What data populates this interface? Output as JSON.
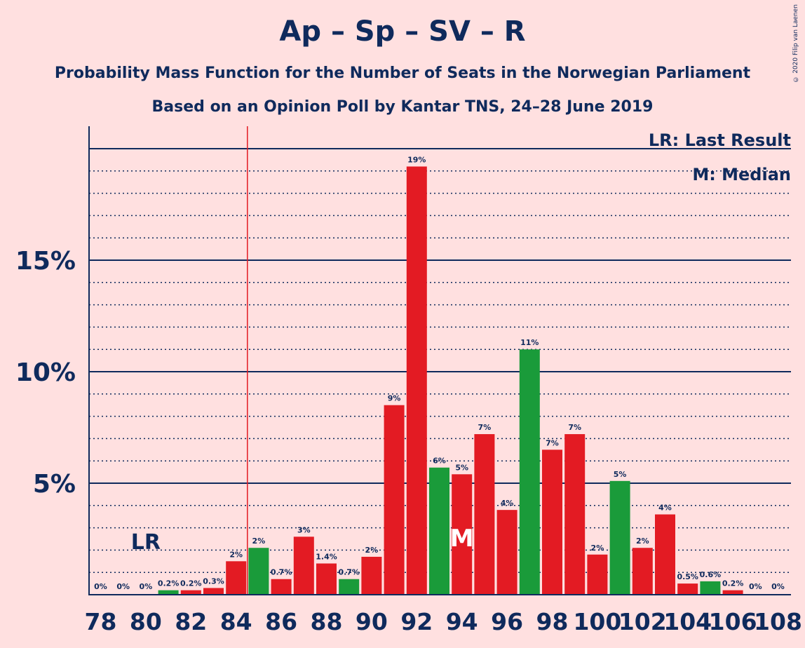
{
  "chart_data": {
    "type": "bar",
    "title": "Ap – Sp – SV – R",
    "subtitle_line1": "Probability Mass Function for the Number of Seats in the Norwegian Parliament",
    "subtitle_line2": "Based on an Opinion Poll by Kantar TNS, 24–28 June 2019",
    "copyright": "© 2020 Filip van Laenen",
    "legend": [
      "LR: Last Result",
      "M: Median"
    ],
    "last_result_seat": 84.5,
    "last_result_label": "LR",
    "last_result_label_seat": 80,
    "median_seat": 94,
    "median_label": "M",
    "x": [
      78,
      79,
      80,
      81,
      82,
      83,
      84,
      85,
      86,
      87,
      88,
      89,
      90,
      91,
      92,
      93,
      94,
      95,
      96,
      97,
      98,
      99,
      100,
      101,
      102,
      103,
      104,
      105,
      106,
      107,
      108
    ],
    "values": [
      0,
      0,
      0,
      0.2,
      0.2,
      0.3,
      1.5,
      2.1,
      0.7,
      2.6,
      1.4,
      0.7,
      1.7,
      8.5,
      19.2,
      5.7,
      5.4,
      7.2,
      3.8,
      11.0,
      6.5,
      7.2,
      1.8,
      5.1,
      2.1,
      3.6,
      0.5,
      0.6,
      0.2,
      0,
      0
    ],
    "value_labels": [
      "0%",
      "0%",
      "0%",
      "0.2%",
      "0.2%",
      "0.3%",
      "2%",
      "2%",
      "0.7%",
      "3%",
      "1.4%",
      "0.7%",
      "2%",
      "9%",
      "19%",
      "6%",
      "5%",
      "7%",
      "4%",
      "11%",
      "7%",
      "7%",
      "2%",
      "5%",
      "2%",
      "4%",
      "0.5%",
      "0.6%",
      "0.2%",
      "0%",
      "0%"
    ],
    "colors": [
      "red",
      "red",
      "red",
      "green",
      "red",
      "red",
      "red",
      "green",
      "red",
      "red",
      "red",
      "green",
      "red",
      "red",
      "red",
      "green",
      "red",
      "red",
      "red",
      "green",
      "red",
      "red",
      "red",
      "green",
      "red",
      "red",
      "red",
      "green",
      "red",
      "red",
      "red"
    ],
    "palette": {
      "red": "#e31b23",
      "green": "#1a9b3a",
      "axis": "#0f2a5c",
      "background": "#ffe0e0",
      "lr_line": "#e31b23"
    },
    "x_tick_labels": [
      "78",
      "80",
      "82",
      "84",
      "86",
      "88",
      "90",
      "92",
      "94",
      "96",
      "98",
      "100",
      "102",
      "104",
      "106",
      "108"
    ],
    "y_tick_labels": [
      {
        "v": 5,
        "label": "5%"
      },
      {
        "v": 10,
        "label": "10%"
      },
      {
        "v": 15,
        "label": "15%"
      }
    ],
    "ylim": [
      0,
      20.8
    ],
    "grid": "dotted every 1%, solid every 5%"
  }
}
